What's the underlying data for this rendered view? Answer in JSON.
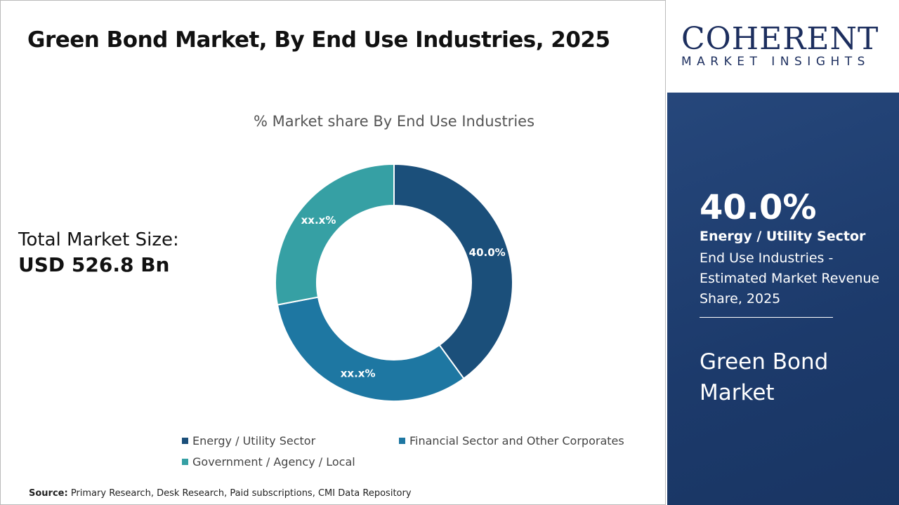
{
  "title": "Green Bond Market, By End Use Industries, 2025",
  "total": {
    "label": "Total Market Size:",
    "value": "USD 526.8 Bn"
  },
  "source": {
    "label": "Source:",
    "text": " Primary Research, Desk Research, Paid subscriptions, CMI Data Repository"
  },
  "logo": {
    "name": "COHERENT",
    "tagline": "MARKET INSIGHTS"
  },
  "panel": {
    "percent": "40.0%",
    "segment": "Energy / Utility Sector",
    "description": "End Use Industries - Estimated Market Revenue Share, 2025",
    "market": "Green Bond Market"
  },
  "chart_data": {
    "type": "pie",
    "donut": true,
    "title": "% Market share By End Use Industries",
    "categories": [
      "Energy / Utility Sector",
      "Financial Sector and Other Corporates",
      "Government / Agency / Local"
    ],
    "values": [
      40.0,
      32,
      28
    ],
    "labels": [
      "40.0%",
      "xx.x%",
      "xx.x%"
    ],
    "colors": [
      "#1b4f7a",
      "#1e77a2",
      "#36a0a4"
    ],
    "legend": "bottom"
  }
}
